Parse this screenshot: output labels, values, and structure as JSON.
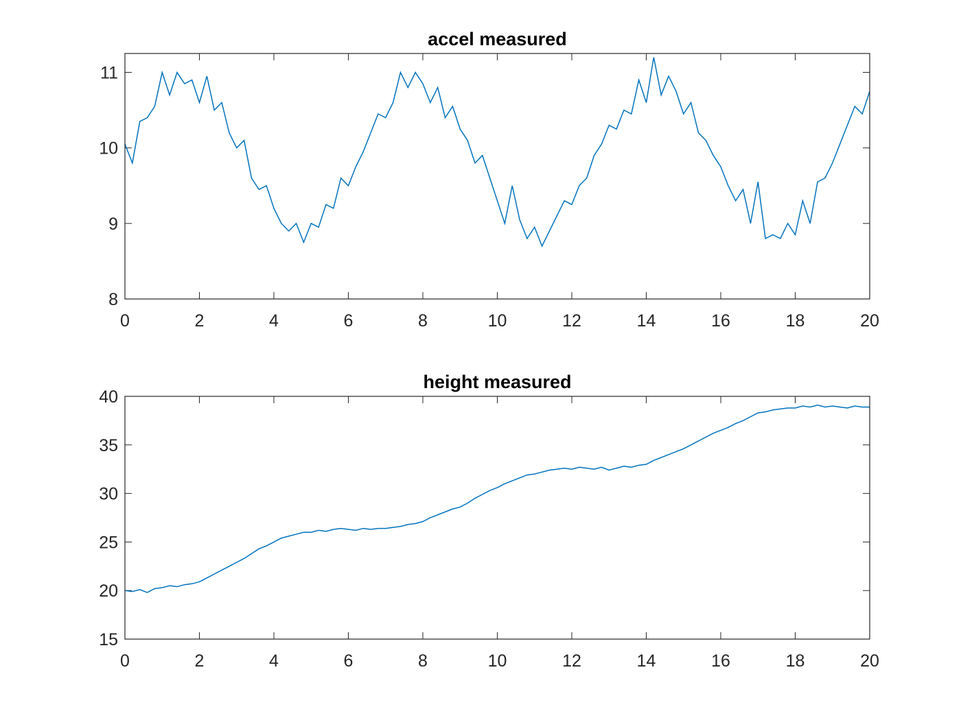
{
  "chart_data": [
    {
      "type": "line",
      "title": "accel measured",
      "x": [
        0,
        0.2,
        0.4,
        0.6,
        0.8,
        1,
        1.2,
        1.4,
        1.6,
        1.8,
        2,
        2.2,
        2.4,
        2.6,
        2.8,
        3,
        3.2,
        3.4,
        3.6,
        3.8,
        4,
        4.2,
        4.4,
        4.6,
        4.8,
        5,
        5.2,
        5.4,
        5.6,
        5.8,
        6,
        6.2,
        6.4,
        6.6,
        6.8,
        7,
        7.2,
        7.4,
        7.6,
        7.8,
        8,
        8.2,
        8.4,
        8.6,
        8.8,
        9,
        9.2,
        9.4,
        9.6,
        9.8,
        10,
        10.2,
        10.4,
        10.6,
        10.8,
        11,
        11.2,
        11.4,
        11.6,
        11.8,
        12,
        12.2,
        12.4,
        12.6,
        12.8,
        13,
        13.2,
        13.4,
        13.6,
        13.8,
        14,
        14.2,
        14.4,
        14.6,
        14.8,
        15,
        15.2,
        15.4,
        15.6,
        15.8,
        16,
        16.2,
        16.4,
        16.6,
        16.8,
        17,
        17.2,
        17.4,
        17.6,
        17.8,
        18,
        18.2,
        18.4,
        18.6,
        18.8,
        19,
        19.2,
        19.4,
        19.6,
        19.8,
        20
      ],
      "series": [
        {
          "color": "#0072bd",
          "values": [
            10.05,
            9.8,
            10.35,
            10.4,
            10.55,
            11.0,
            10.7,
            11.0,
            10.85,
            10.9,
            10.6,
            10.95,
            10.5,
            10.6,
            10.2,
            10.0,
            10.1,
            9.6,
            9.45,
            9.5,
            9.2,
            9.0,
            8.9,
            9.0,
            8.75,
            9.0,
            8.95,
            9.25,
            9.2,
            9.6,
            9.5,
            9.75,
            9.95,
            10.2,
            10.45,
            10.4,
            10.6,
            11.0,
            10.8,
            11.0,
            10.85,
            10.6,
            10.8,
            10.4,
            10.55,
            10.25,
            10.1,
            9.8,
            9.9,
            9.6,
            9.3,
            9.0,
            9.5,
            9.05,
            8.8,
            8.95,
            8.7,
            8.9,
            9.1,
            9.3,
            9.25,
            9.5,
            9.6,
            9.9,
            10.05,
            10.3,
            10.25,
            10.5,
            10.45,
            10.9,
            10.6,
            11.2,
            10.7,
            10.95,
            10.75,
            10.45,
            10.6,
            10.2,
            10.1,
            9.9,
            9.75,
            9.5,
            9.3,
            9.45,
            9.0,
            9.55,
            8.8,
            8.85,
            8.8,
            9.0,
            8.85,
            9.3,
            9.0,
            9.55,
            9.6,
            9.8,
            10.05,
            10.3,
            10.55,
            10.45,
            10.75
          ]
        }
      ],
      "xlim": [
        0,
        20
      ],
      "xticks": [
        0,
        2,
        4,
        6,
        8,
        10,
        12,
        14,
        16,
        18,
        20
      ],
      "ylim": [
        8,
        11.25
      ],
      "yticks": [
        8,
        9,
        10,
        11
      ]
    },
    {
      "type": "line",
      "title": "height measured",
      "x": [
        0,
        0.2,
        0.4,
        0.6,
        0.8,
        1,
        1.2,
        1.4,
        1.6,
        1.8,
        2,
        2.2,
        2.4,
        2.6,
        2.8,
        3,
        3.2,
        3.4,
        3.6,
        3.8,
        4,
        4.2,
        4.4,
        4.6,
        4.8,
        5,
        5.2,
        5.4,
        5.6,
        5.8,
        6,
        6.2,
        6.4,
        6.6,
        6.8,
        7,
        7.2,
        7.4,
        7.6,
        7.8,
        8,
        8.2,
        8.4,
        8.6,
        8.8,
        9,
        9.2,
        9.4,
        9.6,
        9.8,
        10,
        10.2,
        10.4,
        10.6,
        10.8,
        11,
        11.2,
        11.4,
        11.6,
        11.8,
        12,
        12.2,
        12.4,
        12.6,
        12.8,
        13,
        13.2,
        13.4,
        13.6,
        13.8,
        14,
        14.2,
        14.4,
        14.6,
        14.8,
        15,
        15.2,
        15.4,
        15.6,
        15.8,
        16,
        16.2,
        16.4,
        16.6,
        16.8,
        17,
        17.2,
        17.4,
        17.6,
        17.8,
        18,
        18.2,
        18.4,
        18.6,
        18.8,
        19,
        19.2,
        19.4,
        19.6,
        19.8,
        20
      ],
      "series": [
        {
          "color": "#0072bd",
          "values": [
            20.0,
            19.9,
            20.1,
            19.8,
            20.2,
            20.3,
            20.5,
            20.4,
            20.6,
            20.7,
            20.9,
            21.3,
            21.7,
            22.1,
            22.5,
            22.9,
            23.3,
            23.8,
            24.3,
            24.6,
            25.0,
            25.4,
            25.6,
            25.8,
            26.0,
            26.0,
            26.2,
            26.1,
            26.3,
            26.4,
            26.3,
            26.2,
            26.4,
            26.3,
            26.4,
            26.4,
            26.5,
            26.6,
            26.8,
            26.9,
            27.1,
            27.5,
            27.8,
            28.1,
            28.4,
            28.6,
            29.0,
            29.5,
            29.9,
            30.3,
            30.6,
            31.0,
            31.3,
            31.6,
            31.9,
            32.0,
            32.2,
            32.4,
            32.5,
            32.6,
            32.5,
            32.7,
            32.6,
            32.5,
            32.7,
            32.4,
            32.6,
            32.8,
            32.7,
            32.9,
            33.0,
            33.4,
            33.7,
            34.0,
            34.3,
            34.6,
            35.0,
            35.4,
            35.8,
            36.2,
            36.5,
            36.8,
            37.2,
            37.5,
            37.9,
            38.3,
            38.4,
            38.6,
            38.7,
            38.8,
            38.8,
            39.0,
            38.9,
            39.1,
            38.9,
            39.0,
            38.9,
            38.8,
            39.0,
            38.9,
            38.9
          ]
        }
      ],
      "xlim": [
        0,
        20
      ],
      "xticks": [
        0,
        2,
        4,
        6,
        8,
        10,
        12,
        14,
        16,
        18,
        20
      ],
      "ylim": [
        15,
        40
      ],
      "yticks": [
        15,
        20,
        25,
        30,
        35,
        40
      ]
    }
  ]
}
